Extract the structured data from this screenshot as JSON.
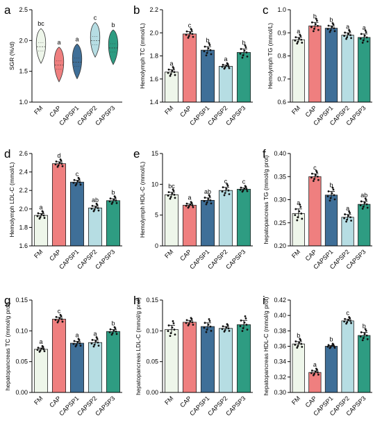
{
  "chart_data": [
    {
      "panel": "a",
      "type": "violin",
      "ylabel": "SGR (%/d)",
      "ylim": [
        1.0,
        2.5
      ],
      "yticks": [
        "1.0",
        "1.5",
        "2.0",
        "2.5"
      ],
      "categories": [
        "FM",
        "CAP",
        "CAPSP1",
        "CAPSP2",
        "CAPSP3"
      ],
      "values": [
        1.9,
        1.6,
        1.65,
        2.0,
        1.88
      ],
      "letters": [
        "bc",
        "a",
        "a",
        "c",
        "b"
      ]
    },
    {
      "panel": "b",
      "type": "bar",
      "ylabel": "Hemolymph TC (mmol/L)",
      "ylim": [
        1.4,
        2.2
      ],
      "yticks": [
        "1.4",
        "1.6",
        "1.8",
        "2.0",
        "2.2"
      ],
      "categories": [
        "FM",
        "CAP",
        "CAPSP1",
        "CAPSP2",
        "CAPSP3"
      ],
      "values": [
        1.66,
        1.99,
        1.85,
        1.71,
        1.83
      ],
      "errors": [
        0.02,
        0.02,
        0.03,
        0.01,
        0.03
      ],
      "letters": [
        "a",
        "c",
        "b",
        "a",
        "b"
      ]
    },
    {
      "panel": "c",
      "type": "bar",
      "ylabel": "Hemolymph TG (mmol/L)",
      "ylim": [
        0.6,
        1.0
      ],
      "yticks": [
        "0.6",
        "0.7",
        "0.8",
        "0.9",
        "1.0"
      ],
      "categories": [
        "FM",
        "CAP",
        "CAPSP1",
        "CAPSP2",
        "CAPSP3"
      ],
      "values": [
        0.87,
        0.93,
        0.92,
        0.89,
        0.88
      ],
      "errors": [
        0.01,
        0.015,
        0.01,
        0.01,
        0.015
      ],
      "letters": [
        "a",
        "b",
        "b",
        "a",
        "a"
      ]
    },
    {
      "panel": "d",
      "type": "bar",
      "ylabel": "Hemolymph LDL-C (mmol/L)",
      "ylim": [
        1.6,
        2.6
      ],
      "yticks": [
        "1.6",
        "1.8",
        "2.0",
        "2.2",
        "2.4",
        "2.6"
      ],
      "categories": [
        "FM",
        "CAP",
        "CAPSP1",
        "CAPSP2",
        "CAPSP3"
      ],
      "values": [
        1.93,
        2.49,
        2.29,
        2.01,
        2.09
      ],
      "errors": [
        0.02,
        0.02,
        0.02,
        0.02,
        0.02
      ],
      "letters": [
        "a",
        "d",
        "c",
        "ab",
        "b"
      ]
    },
    {
      "panel": "e",
      "type": "bar",
      "ylabel": "Hemolymph HDL-C (mmol/L)",
      "ylim": [
        0,
        15
      ],
      "yticks": [
        "0",
        "5",
        "10",
        "15"
      ],
      "categories": [
        "FM",
        "CAP",
        "CAPSP1",
        "CAPSP2",
        "CAPSP3"
      ],
      "values": [
        8.3,
        6.6,
        7.4,
        9.0,
        9.2
      ],
      "errors": [
        0.4,
        0.2,
        0.4,
        0.5,
        0.2
      ],
      "letters": [
        "bc",
        "a",
        "ab",
        "c",
        "c"
      ]
    },
    {
      "panel": "f",
      "type": "bar",
      "ylabel": "hepatopancreas TG (mmol/g prot)",
      "ylim": [
        0.2,
        0.4
      ],
      "yticks": [
        "0.20",
        "0.25",
        "0.30",
        "0.35",
        "0.40"
      ],
      "categories": [
        "FM",
        "CAP",
        "CAPSP1",
        "CAPSP2",
        "CAPSP3"
      ],
      "values": [
        0.27,
        0.35,
        0.31,
        0.262,
        0.29
      ],
      "errors": [
        0.01,
        0.006,
        0.008,
        0.006,
        0.006
      ],
      "letters": [
        "a",
        "c",
        "b",
        "a",
        "ab"
      ]
    },
    {
      "panel": "g",
      "type": "bar",
      "ylabel": "hepatopancreas TC (mmol/g prot)",
      "ylim": [
        0,
        0.15
      ],
      "yticks": [
        "0.00",
        "0.05",
        "0.10",
        "0.15"
      ],
      "categories": [
        "FM",
        "CAP",
        "CAPSP1",
        "CAPSP2",
        "CAPSP3"
      ],
      "values": [
        0.07,
        0.119,
        0.08,
        0.081,
        0.099
      ],
      "errors": [
        0.002,
        0.003,
        0.003,
        0.004,
        0.003
      ],
      "letters": [
        "a",
        "c",
        "a",
        "a",
        "b"
      ]
    },
    {
      "panel": "h",
      "type": "bar",
      "ylabel": "hepatopancreas LDL-C (mmol/g prot)",
      "ylim": [
        0,
        0.15
      ],
      "yticks": [
        "0.00",
        "0.05",
        "0.10",
        "0.15"
      ],
      "categories": [
        "FM",
        "CAP",
        "CAPSP1",
        "CAPSP2",
        "CAPSP3"
      ],
      "values": [
        0.102,
        0.114,
        0.107,
        0.104,
        0.11
      ],
      "errors": [
        0.007,
        0.003,
        0.006,
        0.003,
        0.007
      ],
      "letters": [
        "",
        "",
        "",
        "",
        ""
      ]
    },
    {
      "panel": "i",
      "type": "bar",
      "ylabel": "hepatopancreas HDL-C (mmol/g prot)",
      "ylim": [
        0.3,
        0.42
      ],
      "yticks": [
        "0.30",
        "0.32",
        "0.34",
        "0.36",
        "0.38",
        "0.40",
        "0.42"
      ],
      "categories": [
        "FM",
        "CAP",
        "CAPSP1",
        "CAPSP2",
        "CAPSP3"
      ],
      "values": [
        0.363,
        0.326,
        0.36,
        0.393,
        0.374
      ],
      "errors": [
        0.003,
        0.002,
        0.001,
        0.002,
        0.004
      ],
      "letters": [
        "b",
        "a",
        "b",
        "c",
        "b"
      ]
    }
  ],
  "colors": {
    "fills": [
      "#eef6ea",
      "#ef7f7f",
      "#3f6f98",
      "#b6dde3",
      "#2e9c82"
    ]
  }
}
